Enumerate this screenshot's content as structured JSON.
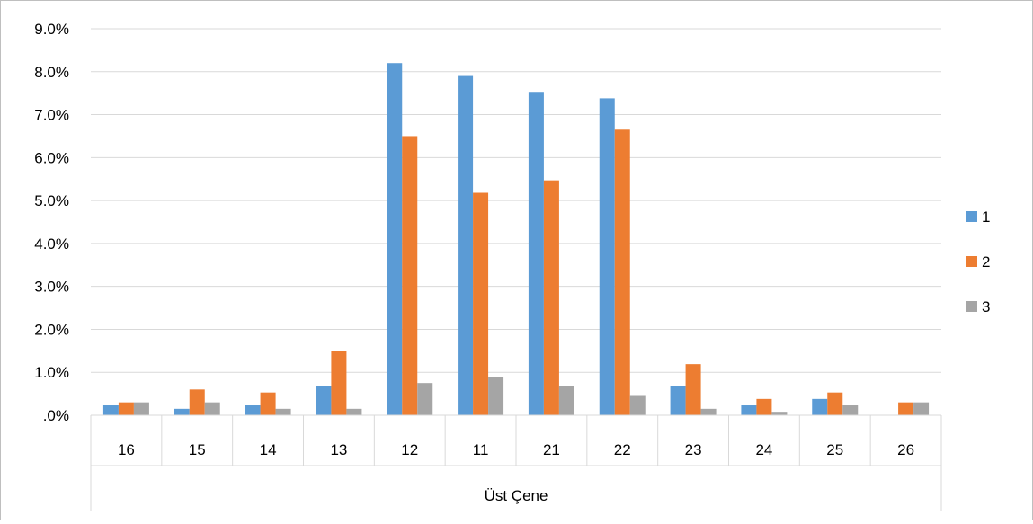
{
  "chart_data": {
    "type": "bar",
    "title": "",
    "xlabel": "Üst Çene",
    "ylabel": "",
    "categories": [
      "16",
      "15",
      "14",
      "13",
      "12",
      "11",
      "21",
      "22",
      "23",
      "24",
      "25",
      "26"
    ],
    "series": [
      {
        "name": "1",
        "color": "#5b9bd5",
        "values": [
          0.23,
          0.15,
          0.23,
          0.68,
          8.2,
          7.9,
          7.53,
          7.38,
          0.68,
          0.23,
          0.38,
          0.0
        ]
      },
      {
        "name": "2",
        "color": "#ed7d31",
        "values": [
          0.3,
          0.6,
          0.53,
          1.49,
          6.5,
          5.18,
          5.47,
          6.65,
          1.19,
          0.38,
          0.53,
          0.3
        ]
      },
      {
        "name": "3",
        "color": "#a5a5a5",
        "values": [
          0.3,
          0.3,
          0.15,
          0.15,
          0.75,
          0.9,
          0.68,
          0.45,
          0.15,
          0.08,
          0.23,
          0.3
        ]
      }
    ],
    "ylim": [
      0,
      9
    ],
    "yticks": [
      ".0%",
      "1.0%",
      "2.0%",
      "3.0%",
      "4.0%",
      "5.0%",
      "6.0%",
      "7.0%",
      "8.0%",
      "9.0%"
    ],
    "grid": true,
    "legend_position": "right"
  }
}
